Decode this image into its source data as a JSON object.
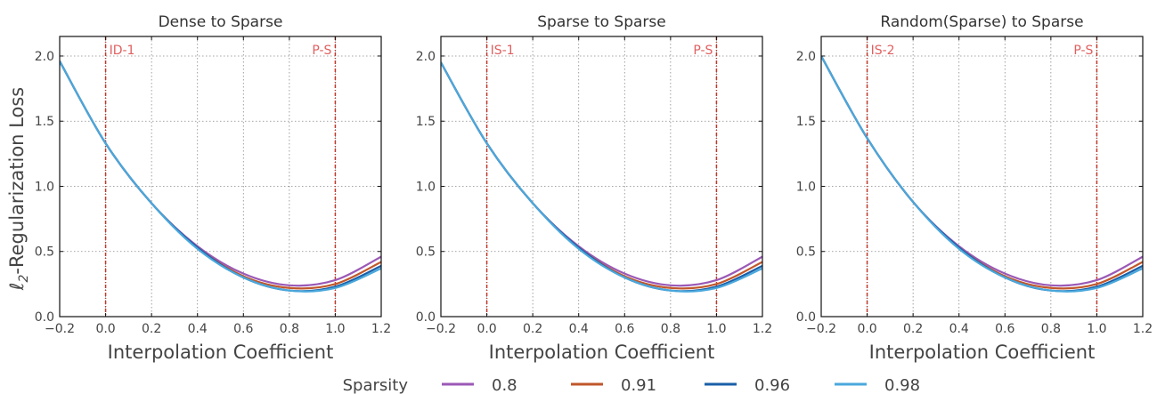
{
  "figure": {
    "ylabel_prefix": "ℓ",
    "ylabel_subscript": "2",
    "ylabel_suffix": "-Regularization Loss",
    "xlabel": "Interpolation Coefficient",
    "legend_title": "Sparsity"
  },
  "colors": {
    "vline": "#c0392b",
    "vline_label": "#e06060",
    "grid": "#888888",
    "frame": "#111111"
  },
  "chart_data": [
    {
      "type": "line",
      "title": "Dense to Sparse",
      "xlabel": "Interpolation Coefficient",
      "ylabel": "ℓ2-Regularization Loss",
      "xlim": [
        -0.2,
        1.2
      ],
      "ylim": [
        0.0,
        2.15
      ],
      "xticks": [
        "-0.2",
        "0.0",
        "0.2",
        "0.4",
        "0.6",
        "0.8",
        "1.0",
        "1.2"
      ],
      "yticks": [
        "0.0",
        "0.5",
        "1.0",
        "1.5",
        "2.0"
      ],
      "grid": true,
      "vlines": [
        {
          "x": 0.0,
          "label": "ID-1"
        },
        {
          "x": 1.0,
          "label": "P-S"
        }
      ],
      "x": [
        -0.2,
        0.0,
        0.2,
        0.4,
        0.6,
        0.8,
        1.0,
        1.2
      ],
      "series": [
        {
          "name": "0.8",
          "color": "#9b59b6",
          "values": [
            1.96,
            1.33,
            0.87,
            0.54,
            0.33,
            0.24,
            0.28,
            0.46
          ]
        },
        {
          "name": "0.91",
          "color": "#c0572b",
          "values": [
            1.96,
            1.33,
            0.87,
            0.53,
            0.31,
            0.22,
            0.25,
            0.42
          ]
        },
        {
          "name": "0.96",
          "color": "#1a5fa8",
          "values": [
            1.96,
            1.33,
            0.87,
            0.53,
            0.3,
            0.2,
            0.23,
            0.39
          ]
        },
        {
          "name": "0.98",
          "color": "#4aa8dc",
          "values": [
            1.96,
            1.33,
            0.87,
            0.52,
            0.3,
            0.2,
            0.22,
            0.37
          ]
        }
      ]
    },
    {
      "type": "line",
      "title": "Sparse to Sparse",
      "xlabel": "Interpolation Coefficient",
      "ylabel": "",
      "xlim": [
        -0.2,
        1.2
      ],
      "ylim": [
        0.0,
        2.15
      ],
      "xticks": [
        "-0.2",
        "0.0",
        "0.2",
        "0.4",
        "0.6",
        "0.8",
        "1.0",
        "1.2"
      ],
      "yticks": [
        "0.0",
        "0.5",
        "1.0",
        "1.5",
        "2.0"
      ],
      "grid": true,
      "vlines": [
        {
          "x": 0.0,
          "label": "IS-1"
        },
        {
          "x": 1.0,
          "label": "P-S"
        }
      ],
      "x": [
        -0.2,
        0.0,
        0.2,
        0.4,
        0.6,
        0.8,
        1.0,
        1.2
      ],
      "series": [
        {
          "name": "0.8",
          "color": "#9b59b6",
          "values": [
            1.95,
            1.33,
            0.87,
            0.54,
            0.33,
            0.24,
            0.28,
            0.46
          ]
        },
        {
          "name": "0.91",
          "color": "#c0572b",
          "values": [
            1.95,
            1.33,
            0.87,
            0.53,
            0.31,
            0.22,
            0.25,
            0.42
          ]
        },
        {
          "name": "0.96",
          "color": "#1a5fa8",
          "values": [
            1.95,
            1.33,
            0.87,
            0.53,
            0.3,
            0.2,
            0.23,
            0.39
          ]
        },
        {
          "name": "0.98",
          "color": "#4aa8dc",
          "values": [
            1.95,
            1.33,
            0.87,
            0.52,
            0.3,
            0.2,
            0.22,
            0.37
          ]
        }
      ]
    },
    {
      "type": "line",
      "title": "Random(Sparse) to Sparse",
      "xlabel": "Interpolation Coefficient",
      "ylabel": "",
      "xlim": [
        -0.2,
        1.2
      ],
      "ylim": [
        0.0,
        2.15
      ],
      "xticks": [
        "-0.2",
        "0.0",
        "0.2",
        "0.4",
        "0.6",
        "0.8",
        "1.0",
        "1.2"
      ],
      "yticks": [
        "0.0",
        "0.5",
        "1.0",
        "1.5",
        "2.0"
      ],
      "grid": true,
      "vlines": [
        {
          "x": 0.0,
          "label": "IS-2"
        },
        {
          "x": 1.0,
          "label": "P-S"
        }
      ],
      "x": [
        -0.2,
        0.0,
        0.2,
        0.4,
        0.6,
        0.8,
        1.0,
        1.2
      ],
      "series": [
        {
          "name": "0.8",
          "color": "#9b59b6",
          "values": [
            2.0,
            1.37,
            0.88,
            0.54,
            0.33,
            0.24,
            0.28,
            0.46
          ]
        },
        {
          "name": "0.91",
          "color": "#c0572b",
          "values": [
            2.0,
            1.37,
            0.88,
            0.53,
            0.31,
            0.22,
            0.25,
            0.42
          ]
        },
        {
          "name": "0.96",
          "color": "#1a5fa8",
          "values": [
            2.0,
            1.37,
            0.88,
            0.53,
            0.3,
            0.2,
            0.23,
            0.39
          ]
        },
        {
          "name": "0.98",
          "color": "#4aa8dc",
          "values": [
            2.0,
            1.37,
            0.88,
            0.52,
            0.3,
            0.2,
            0.22,
            0.37
          ]
        }
      ]
    }
  ]
}
